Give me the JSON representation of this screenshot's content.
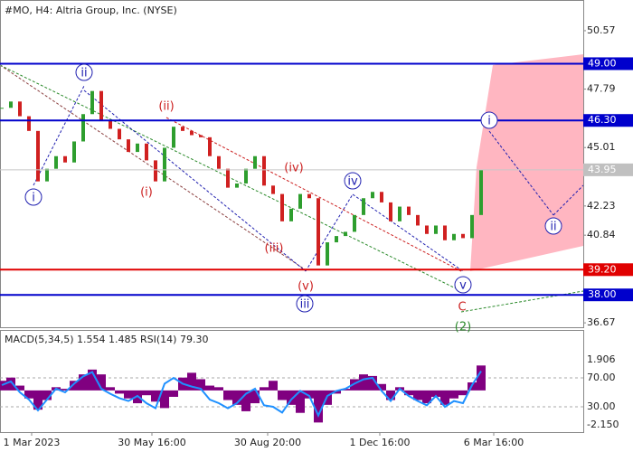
{
  "chart_data": {
    "type": "candle",
    "title": "#MO, H4:  Altria Group, Inc. (NYSE)",
    "values": [
      46.9,
      47.2,
      46.5,
      45.8,
      43.4,
      44.0,
      44.6,
      44.3,
      45.3,
      46.6,
      47.7,
      46.3,
      45.9,
      45.4,
      44.8,
      45.2,
      44.4,
      43.4,
      45.0,
      46.0,
      45.8,
      45.6,
      45.5,
      44.6,
      44.0,
      43.1,
      43.3,
      44.0,
      44.6,
      43.2,
      42.8,
      41.5,
      42.1,
      42.8,
      42.6,
      39.4,
      40.5,
      40.8,
      41.0,
      41.8,
      42.6,
      42.9,
      42.4,
      41.5,
      42.2,
      41.8,
      41.3,
      40.9,
      41.3,
      40.6,
      40.9,
      40.7,
      41.8,
      43.95
    ],
    "up_color": "#2e9e2e",
    "down_color": "#d02020",
    "xlim": [
      -0.2,
      64.3
    ],
    "xticks": [
      {
        "value": 3.3,
        "label": "1 Mar 2023"
      },
      {
        "value": 16.6,
        "label": "30 May 16:00"
      },
      {
        "value": 29.4,
        "label": "30 Aug 20:00"
      },
      {
        "value": 41.8,
        "label": "1 Dec 16:00"
      },
      {
        "value": 54.4,
        "label": "6 Mar 16:00"
      }
    ],
    "ylim": [
      36.46,
      52.03
    ],
    "yticks": [
      50.57,
      47.79,
      45.01,
      42.23,
      40.84,
      36.67
    ],
    "levels": [
      {
        "value": 49.0,
        "label": "49.00",
        "color": "#0000cc",
        "label_bg": "#0000cc"
      },
      {
        "value": 46.3,
        "label": "46.30",
        "color": "#0000cc",
        "label_bg": "#0000cc"
      },
      {
        "value": 43.95,
        "label": "43.95",
        "color": "#c8c8c8",
        "label_bg": "#c0c0c0"
      },
      {
        "value": 39.2,
        "label": "39.20",
        "color": "#e00000",
        "label_bg": "#e00000"
      },
      {
        "value": 38.0,
        "label": "38.00",
        "color": "#0000cc",
        "label_bg": "#0000cc"
      }
    ],
    "annotations": [
      {
        "text": "ii",
        "color": "#2020b0"
      },
      {
        "text": "i",
        "color": "#2020b0"
      },
      {
        "text": "(ii)",
        "color": "#cc2020"
      },
      {
        "text": "(i)",
        "color": "#cc2020"
      },
      {
        "text": "(iv)",
        "color": "#cc2020"
      },
      {
        "text": "(iii)",
        "color": "#cc2020"
      },
      {
        "text": "(v)",
        "color": "#cc2020"
      },
      {
        "text": "iii",
        "color": "#2020b0"
      },
      {
        "text": "iv",
        "color": "#2020b0"
      },
      {
        "text": "v",
        "color": "#2020b0"
      },
      {
        "text": "C",
        "color": "#cc2020"
      },
      {
        "text": "(2)",
        "color": "#2a8a2a"
      },
      {
        "text": "i",
        "color": "#2020b0"
      },
      {
        "text": "ii",
        "color": "#2020b0"
      }
    ],
    "indicator": {
      "title": "MACD(5,34,5) 1.554 1.485 RSI(14) 79.30",
      "macd": [
        0.6,
        0.8,
        0.3,
        -0.5,
        -1.2,
        -0.6,
        0.2,
        0.1,
        0.6,
        1.0,
        1.3,
        1.0,
        0.2,
        -0.2,
        -0.5,
        -0.8,
        -0.3,
        -0.7,
        -1.1,
        -0.4,
        0.8,
        1.1,
        0.7,
        0.3,
        0.2,
        -0.6,
        -0.9,
        -1.3,
        -0.8,
        0.2,
        0.6,
        -0.6,
        -0.9,
        -1.4,
        -0.5,
        -2.0,
        -0.9,
        -0.2,
        0.1,
        0.7,
        1.0,
        0.9,
        0.4,
        -0.6,
        0.2,
        -0.3,
        -0.6,
        -0.8,
        -0.4,
        -0.9,
        -0.5,
        -0.3,
        0.5,
        1.554
      ],
      "macd_color": "#800080",
      "rsi": [
        60,
        65,
        50,
        40,
        25,
        40,
        55,
        50,
        62,
        72,
        78,
        55,
        48,
        42,
        38,
        45,
        35,
        28,
        62,
        70,
        62,
        58,
        55,
        40,
        35,
        28,
        35,
        48,
        55,
        32,
        30,
        22,
        40,
        52,
        45,
        18,
        45,
        52,
        55,
        62,
        68,
        70,
        52,
        38,
        55,
        45,
        38,
        32,
        45,
        30,
        38,
        35,
        60,
        79.3
      ],
      "rsi_color": "#1e90ff",
      "ylim": [
        -2.6,
        3.77
      ],
      "yticks": [
        {
          "value": 1.906,
          "label": "1.906"
        },
        {
          "value": -2.15,
          "label": "-2.150"
        }
      ],
      "y2lim": [
        -5,
        136.25
      ],
      "y2ticks": [
        {
          "value": 70,
          "label": "70.00"
        },
        {
          "value": 30,
          "label": "30.00"
        }
      ]
    }
  }
}
